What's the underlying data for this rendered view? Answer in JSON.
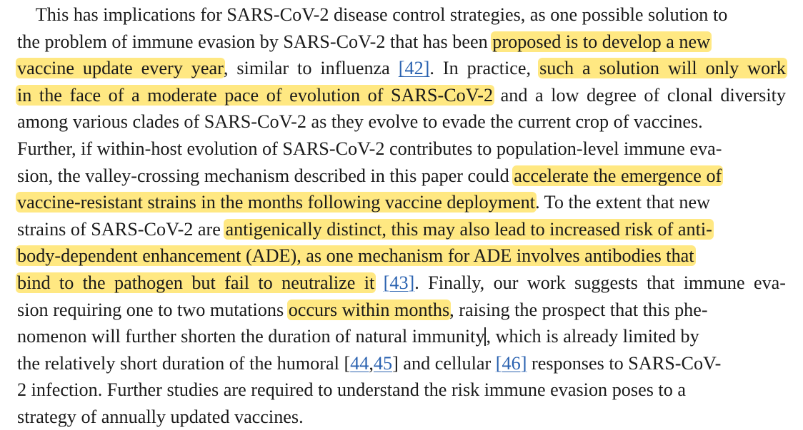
{
  "paragraph": {
    "lines": [
      [
        {
          "t": "    This has implications for SARS-CoV-2 disease control strategies, as one possible solution to"
        }
      ],
      [
        {
          "t": "the problem of immune evasion by SARS-CoV-2 that has been "
        },
        {
          "t": "proposed is to develop a new",
          "h": true
        }
      ],
      [
        {
          "t": "vaccine update every year",
          "h": true
        },
        {
          "t": ", similar to influenza "
        },
        {
          "t": "[42]",
          "r": true
        },
        {
          "t": ". In practice, "
        },
        {
          "t": "such a solution will only work",
          "h": true
        }
      ],
      [
        {
          "t": "in the face of a moderate pace of evolution of SARS-CoV-2",
          "h": true
        },
        {
          "t": " and a low degree of clonal diversity"
        }
      ],
      [
        {
          "t": "among various clades of SARS-CoV-2 as they evolve to evade the current crop of vaccines."
        }
      ],
      [
        {
          "t": "Further, if within-host evolution of SARS-CoV-2 contributes to population-level immune eva-"
        }
      ],
      [
        {
          "t": "sion, the valley-crossing mechanism described in this paper could "
        },
        {
          "t": "accelerate the emergence of",
          "h": true
        }
      ],
      [
        {
          "t": "vaccine-resistant strains in the months following vaccine deployment",
          "h": true
        },
        {
          "t": ". To the extent that new"
        }
      ],
      [
        {
          "t": "strains of SARS-CoV-2 are "
        },
        {
          "t": "antigenically distinct, this may also lead to increased risk of anti-",
          "h": true
        }
      ],
      [
        {
          "t": "body-dependent enhancement (ADE), as one mechanism for ADE involves antibodies that",
          "h": true
        }
      ],
      [
        {
          "t": "bind to the pathogen but fail to neutralize it",
          "h": true
        },
        {
          "t": " "
        },
        {
          "t": "[43]",
          "r": true
        },
        {
          "t": ". Finally, our work suggests that immune eva-"
        }
      ],
      [
        {
          "t": "sion requiring one to two mutations "
        },
        {
          "t": "occurs within months",
          "h": true
        },
        {
          "t": ", raising the prospect that this phe-"
        }
      ],
      [
        {
          "t": "nomenon will further shorten the duration of natural immunity"
        },
        {
          "c": true
        },
        {
          "t": ", which is already limited by"
        }
      ],
      [
        {
          "t": "the relatively short duration of the humoral "
        },
        {
          "t": "["
        },
        {
          "t": "44",
          "r": true
        },
        {
          "t": ","
        },
        {
          "t": "45",
          "r": true
        },
        {
          "t": "]"
        },
        {
          "t": " and cellular "
        },
        {
          "t": "[46]",
          "r": true
        },
        {
          "t": " responses to SARS-CoV-"
        }
      ],
      [
        {
          "t": "2 infection. Further studies are required to understand the risk immune evasion poses to a"
        }
      ],
      [
        {
          "t": "strategy of annually updated vaccines."
        }
      ]
    ]
  }
}
